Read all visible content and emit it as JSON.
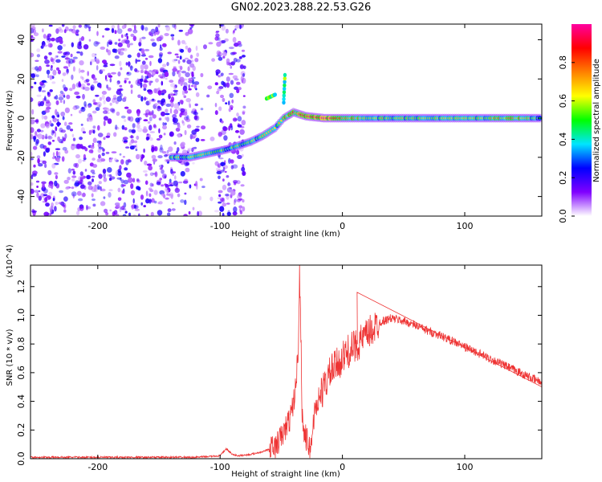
{
  "title": "GN02.2023.288.22.53.G26",
  "chart_data": [
    {
      "type": "scatter",
      "subtype": "spectrogram",
      "xlabel": "Height of straight line (km)",
      "ylabel": "Frequency (Hz)",
      "xlim": [
        -255,
        163
      ],
      "ylim": [
        -50,
        48
      ],
      "x_ticks": [
        -200,
        -100,
        0,
        100
      ],
      "y_ticks": [
        -40,
        -20,
        0,
        20,
        40
      ],
      "colorbar": {
        "label": "Normalized spectral amplitude",
        "range": [
          0.0,
          1.0
        ],
        "ticks": [
          "0.0",
          "0.2",
          "0.4",
          "0.6",
          "0.8"
        ],
        "colors": [
          "#ffffff",
          "#8000ff",
          "#0000ff",
          "#00e5ff",
          "#00ff00",
          "#ffff00",
          "#ff8000",
          "#ff0000",
          "#ff00a0"
        ]
      },
      "noise_region": {
        "x": [
          -255,
          -80
        ],
        "y": [
          -50,
          48
        ]
      },
      "trace": [
        {
          "x": -140,
          "y": -20,
          "a": 0.55
        },
        {
          "x": -125,
          "y": -20,
          "a": 0.5
        },
        {
          "x": -110,
          "y": -18,
          "a": 0.6
        },
        {
          "x": -95,
          "y": -16,
          "a": 0.55
        },
        {
          "x": -85,
          "y": -14,
          "a": 0.5
        },
        {
          "x": -75,
          "y": -12,
          "a": 0.55
        },
        {
          "x": -65,
          "y": -9,
          "a": 0.6
        },
        {
          "x": -55,
          "y": -5,
          "a": 0.6
        },
        {
          "x": -48,
          "y": 0,
          "a": 0.65
        },
        {
          "x": -40,
          "y": 3,
          "a": 0.8
        },
        {
          "x": -30,
          "y": 1,
          "a": 0.9
        },
        {
          "x": -15,
          "y": 0,
          "a": 0.95
        },
        {
          "x": 0,
          "y": 0,
          "a": 0.85
        },
        {
          "x": 20,
          "y": 0,
          "a": 0.6
        },
        {
          "x": 50,
          "y": 0,
          "a": 0.6
        },
        {
          "x": 80,
          "y": 0,
          "a": 0.62
        },
        {
          "x": 110,
          "y": 0,
          "a": 0.6
        },
        {
          "x": 140,
          "y": 0,
          "a": 0.75
        },
        {
          "x": 163,
          "y": 0,
          "a": 0.5
        }
      ],
      "spurs": [
        {
          "x": [
            -62,
            -55
          ],
          "y": [
            10,
            12
          ],
          "a": 0.5
        },
        {
          "x": [
            -48,
            -47
          ],
          "y": [
            8,
            22
          ],
          "a": 0.5
        }
      ]
    },
    {
      "type": "line",
      "xlabel": "Height of straight line (km)",
      "ylabel": "SNR (10 * v/v)",
      "y_multiplier": "(x10^4)",
      "xlim": [
        -255,
        163
      ],
      "ylim": [
        0,
        1.35
      ],
      "x_ticks": [
        -200,
        -100,
        0,
        100
      ],
      "y_ticks": [
        "0.0",
        "0.2",
        "0.4",
        "0.6",
        "0.8",
        "1.0",
        "1.2"
      ],
      "color": "#ee3333",
      "series": [
        {
          "x": [
            -255,
            -230,
            -200,
            -160,
            -120,
            -100,
            -95,
            -90,
            -85,
            -75,
            -65,
            -55,
            -48,
            -42,
            -38,
            -36,
            -35,
            -34,
            -33,
            -32,
            -30,
            -28,
            -26,
            -24,
            -22,
            -20,
            -15,
            -10,
            -5,
            0,
            5,
            10,
            20,
            30,
            40,
            50,
            60,
            70,
            80,
            90,
            100,
            110,
            120,
            130,
            140,
            150,
            163
          ],
          "y": [
            0.01,
            0.01,
            0.01,
            0.01,
            0.01,
            0.02,
            0.07,
            0.03,
            0.02,
            0.03,
            0.05,
            0.08,
            0.18,
            0.3,
            0.5,
            0.8,
            1.3,
            0.9,
            0.35,
            0.2,
            0.15,
            0.1,
            0.05,
            0.25,
            0.35,
            0.4,
            0.5,
            0.6,
            0.65,
            0.7,
            0.75,
            0.78,
            0.86,
            0.95,
            0.98,
            0.96,
            0.93,
            0.89,
            0.86,
            0.82,
            0.78,
            0.74,
            0.7,
            0.66,
            0.62,
            0.58,
            0.53
          ]
        }
      ],
      "spike_labels": [
        {
          "x": 12,
          "y": 1.16
        }
      ]
    }
  ]
}
